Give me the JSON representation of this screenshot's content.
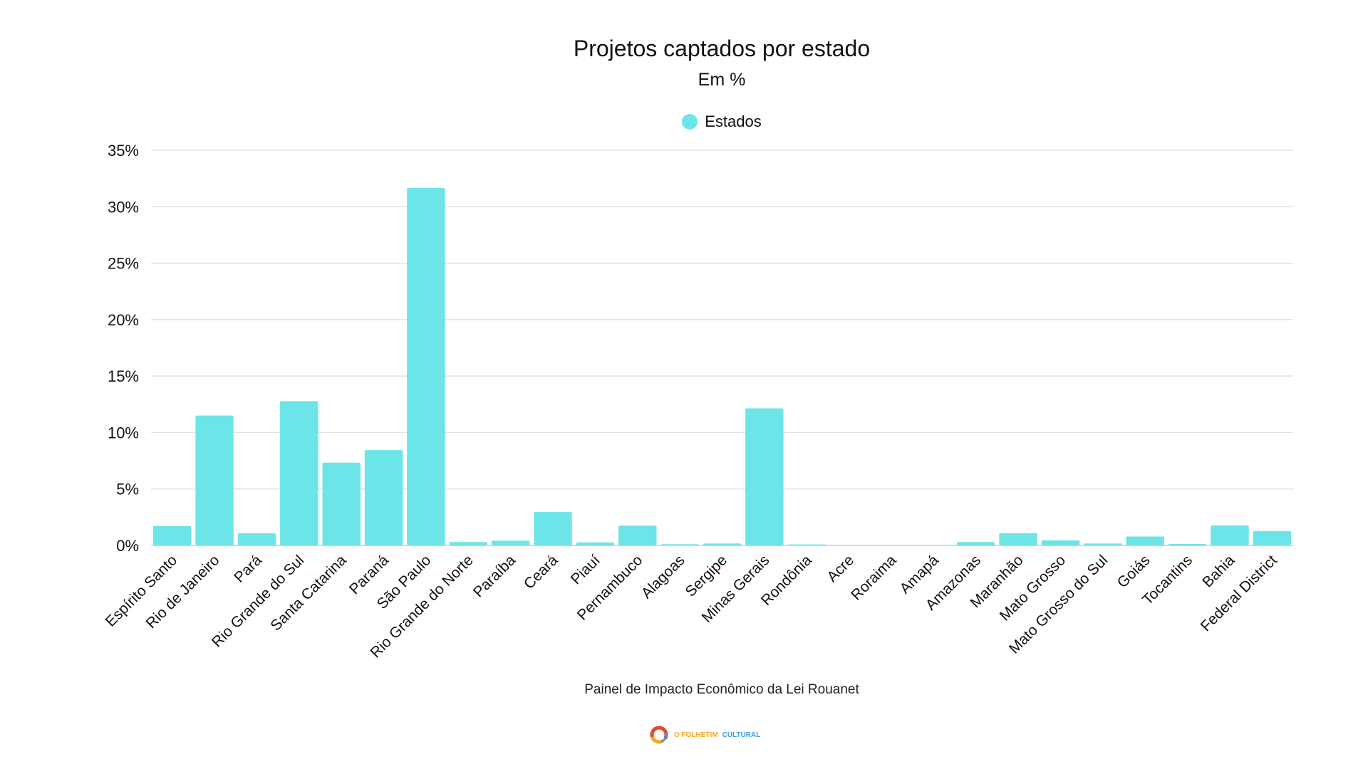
{
  "chart_data": {
    "type": "bar",
    "title": "Projetos captados por estado",
    "subtitle": "Em %",
    "xlabel": "",
    "ylabel": "",
    "ylim": [
      0,
      35
    ],
    "yticks": [
      0,
      5,
      10,
      15,
      20,
      25,
      30,
      35
    ],
    "ytick_labels": [
      "0%",
      "5%",
      "10%",
      "15%",
      "20%",
      "25%",
      "30%",
      "35%"
    ],
    "grid": true,
    "legend_position": "top-center",
    "x_label_rotation_deg": -45,
    "categories": [
      "Espírito Santo",
      "Rio de Janeiro",
      "Pará",
      "Rio Grande do Sul",
      "Santa Catarina",
      "Paraná",
      "São Paulo",
      "Rio Grande do Norte",
      "Paraíba",
      "Ceará",
      "Piauí",
      "Pernambuco",
      "Alagoas",
      "Sergipe",
      "Minas Gerais",
      "Rondônia",
      "Acre",
      "Roraima",
      "Amapá",
      "Amazonas",
      "Maranhão",
      "Mato Grosso",
      "Mato Grosso do Sul",
      "Goiás",
      "Tocantins",
      "Bahia",
      "Federal District"
    ],
    "series": [
      {
        "name": "Estados",
        "color": "#6ce5e8",
        "values": [
          1.73,
          11.5,
          1.09,
          12.78,
          7.33,
          8.44,
          31.66,
          0.3,
          0.42,
          2.96,
          0.27,
          1.76,
          0.1,
          0.17,
          12.14,
          0.09,
          0.02,
          0.0,
          0.02,
          0.3,
          1.09,
          0.45,
          0.17,
          0.79,
          0.13,
          1.77,
          1.28
        ]
      }
    ]
  },
  "footer": {
    "source": "Painel de Impacto Econômico da Lei Rouanet",
    "logo_part1": "O FOLHETIM",
    "logo_part2": "CULTURAL"
  },
  "colors": {
    "bar": "#6ce5e8",
    "grid": "#e2e2e2",
    "logo_orange": "#f5a623",
    "logo_blue": "#3a9bd9",
    "logo_red": "#e8452c"
  }
}
